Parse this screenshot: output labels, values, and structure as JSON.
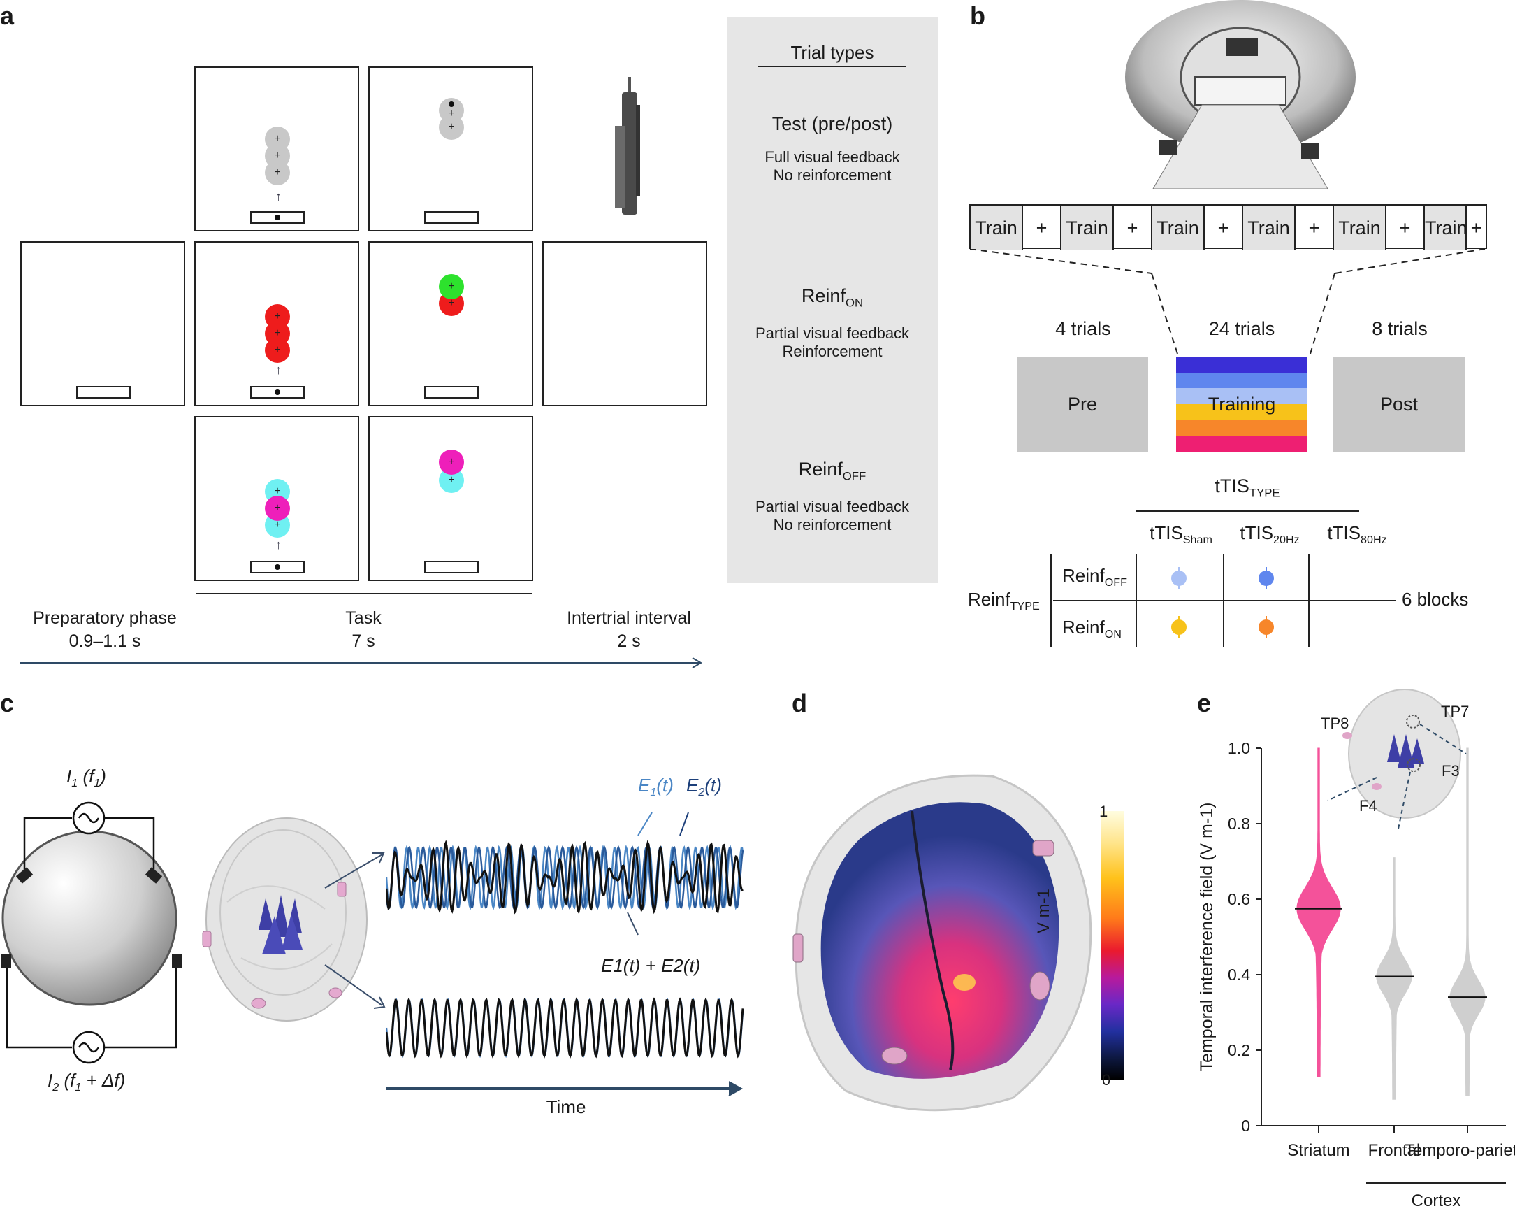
{
  "panels": {
    "a": "a",
    "b": "b",
    "c": "c",
    "d": "d",
    "e": "e"
  },
  "panel_a": {
    "trial_types_title": "Trial types",
    "test": {
      "title": "Test (pre/post)",
      "line1": "Full visual feedback",
      "line2": "No reinforcement"
    },
    "reinf_on": {
      "title": "Reinf",
      "sub": "ON",
      "line1": "Partial visual feedback",
      "line2": "Reinforcement"
    },
    "reinf_off": {
      "title": "Reinf",
      "sub": "OFF",
      "line1": "Partial visual feedback",
      "line2": "No reinforcement"
    },
    "phases": {
      "prep": {
        "name": "Preparatory phase",
        "dur": "0.9–1.1 s"
      },
      "task": {
        "name": "Task",
        "dur": "7 s"
      },
      "iti": {
        "name": "Intertrial interval",
        "dur": "2 s"
      }
    }
  },
  "panel_b": {
    "sequence": [
      "Train",
      "+",
      "Train",
      "+",
      "Train",
      "+",
      "Train",
      "+",
      "Train",
      "+",
      "Train",
      "+"
    ],
    "pre": {
      "count": "4 trials",
      "label": "Pre"
    },
    "training": {
      "count": "24 trials",
      "label": "Training"
    },
    "post": {
      "count": "8 trials",
      "label": "Post"
    },
    "training_colors": [
      "#3a2fd6",
      "#5f86ee",
      "#a9c0f5",
      "#f7c21a",
      "#f7862a",
      "#ee1f72"
    ],
    "tTIS_type": {
      "main": "tTIS",
      "sub": "TYPE"
    },
    "columns": [
      {
        "main": "tTIS",
        "sub": "Sham"
      },
      {
        "main": "tTIS",
        "sub": "20Hz"
      },
      {
        "main": "tTIS",
        "sub": "80Hz"
      }
    ],
    "reinf_type": {
      "main": "Reinf",
      "sub": "TYPE"
    },
    "rows": [
      {
        "main": "Reinf",
        "sub": "OFF",
        "colors": [
          "#a9c0f5",
          "#5f86ee",
          "#3a2fd6"
        ]
      },
      {
        "main": "Reinf",
        "sub": "ON",
        "colors": [
          "#f7c21a",
          "#f7862a",
          "#ee1f72"
        ]
      }
    ],
    "blocks": "6 blocks"
  },
  "panel_c": {
    "i1": "I",
    "i1_sub": "1",
    "i1_f": "(f",
    "i1_fsub": "1",
    "i1_close": ")",
    "i2": "I",
    "i2_sub": "2",
    "i2_f": "(f",
    "i2_fsub": "1",
    "i2_rest": " + Δf)",
    "e1": "E",
    "e1_sub": "1",
    "e1_t": "(t)",
    "e2": "E",
    "e2_sub": "2",
    "e2_t": "(t)",
    "sum_label": "E1(t) + E2(t)",
    "time": "Time"
  },
  "panel_d": {
    "cbar_max": "1",
    "cbar_min": "0",
    "cbar_label": "V m-1"
  },
  "chart_data": {
    "type": "violin",
    "title": "",
    "ylabel": "Temporal interference field (V m-1)",
    "ylim": [
      0,
      1.0
    ],
    "yticks": [
      "0",
      "0.2",
      "0.4",
      "0.6",
      "0.8",
      "1.0"
    ],
    "categories": [
      "Striatum",
      "Frontal",
      "Temporo-parietal"
    ],
    "category_line2": [
      "",
      "",
      "parietal"
    ],
    "group_label": "Cortex",
    "series": [
      {
        "name": "Striatum",
        "median": 0.575,
        "min": 0.13,
        "max": 1.0,
        "color": "#f4529a"
      },
      {
        "name": "Frontal",
        "median": 0.395,
        "min": 0.07,
        "max": 0.71,
        "color": "#cfcfcf"
      },
      {
        "name": "Temporo-parietal",
        "median": 0.34,
        "min": 0.08,
        "max": 1.0,
        "color": "#cfcfcf"
      }
    ],
    "electrodes": [
      "TP7",
      "TP8",
      "F3",
      "F4"
    ]
  }
}
